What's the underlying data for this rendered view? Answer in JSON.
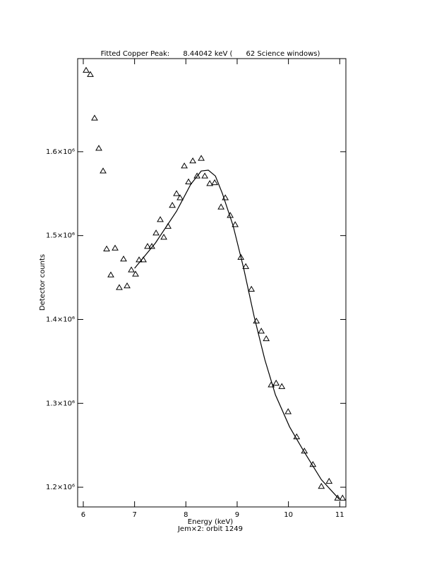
{
  "chart_data": {
    "type": "scatter",
    "title": "Fitted Copper Peak:      8.44042 keV (      62 Science windows)",
    "xlabel": "Energy (keV)",
    "subtitle": "Jem×2: orbit 1249",
    "ylabel": "Detector counts",
    "xlim": [
      5.89,
      11.12
    ],
    "ylim": [
      1176500,
      1711000
    ],
    "xticks": [
      6,
      7,
      8,
      9,
      10,
      11
    ],
    "yticks": [
      {
        "value": 1200000,
        "label": "1.2×10⁶"
      },
      {
        "value": 1300000,
        "label": "1.3×10⁶"
      },
      {
        "value": 1400000,
        "label": "1.4×10⁶"
      },
      {
        "value": 1500000,
        "label": "1.5×10⁶"
      },
      {
        "value": 1600000,
        "label": "1.6×10⁶"
      }
    ],
    "series": [
      {
        "color": "#000000",
        "marker": "triangle",
        "x": [
          6.055,
          6.138,
          6.22,
          6.303,
          6.386,
          6.455,
          6.537,
          6.62,
          6.702,
          6.785,
          6.854,
          6.937,
          7.019,
          7.088,
          7.171,
          7.253,
          7.336,
          7.419,
          7.501,
          7.57,
          7.653,
          7.736,
          7.818,
          7.887,
          7.97,
          8.052,
          8.135,
          8.218,
          8.3,
          8.369,
          8.466,
          8.562,
          8.686,
          8.769,
          8.865,
          8.961,
          9.072,
          9.168,
          9.278,
          9.375,
          9.471,
          9.567,
          9.664,
          9.76,
          9.871,
          9.994,
          10.16,
          10.311,
          10.477,
          10.642,
          10.793,
          10.959,
          11.055
        ],
        "values": [
          1697000,
          1692000,
          1640000,
          1604000,
          1577000,
          1484000,
          1453000,
          1485000,
          1438000,
          1472000,
          1440000,
          1459000,
          1454000,
          1471000,
          1471000,
          1487000,
          1487000,
          1503000,
          1519000,
          1498000,
          1511000,
          1536000,
          1550000,
          1545000,
          1583000,
          1564000,
          1589000,
          1571000,
          1592000,
          1571000,
          1562000,
          1563000,
          1534000,
          1545000,
          1524000,
          1513000,
          1474000,
          1463000,
          1436000,
          1398000,
          1386000,
          1377000,
          1322000,
          1324000,
          1320000,
          1290000,
          1260000,
          1243000,
          1227000,
          1201000,
          1207000,
          1187000,
          1187000
        ]
      },
      {
        "color": "#000000",
        "line": true,
        "x": [
          7.0,
          7.405,
          7.818,
          8.094,
          8.3,
          8.438,
          8.576,
          8.713,
          8.92,
          9.127,
          9.333,
          9.54,
          9.747,
          10.022,
          10.298,
          10.642,
          10.986
        ],
        "values": [
          1461000,
          1491000,
          1529000,
          1561000,
          1577000,
          1578000,
          1571000,
          1550000,
          1512000,
          1461000,
          1403000,
          1352000,
          1310000,
          1272000,
          1243000,
          1209000,
          1186000
        ]
      }
    ]
  }
}
